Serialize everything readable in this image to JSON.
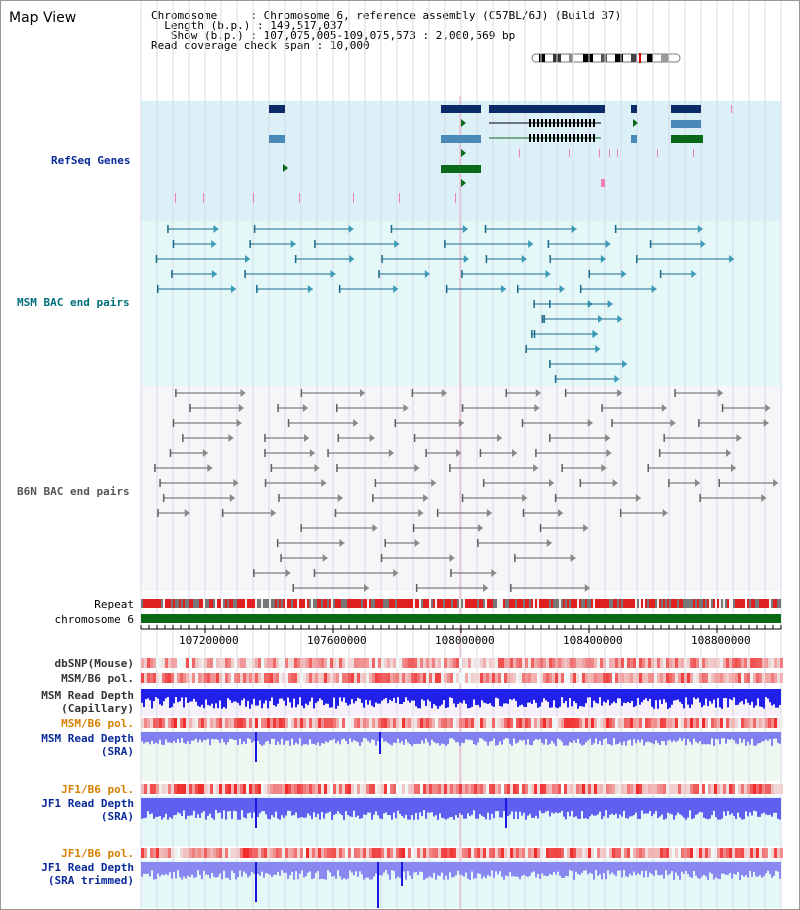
{
  "window": {
    "title": "Map View"
  },
  "info": {
    "chromosome_label": "Chromosome",
    "chromosome_value": "Chromosome 6, reference assembly (C57BL/6J) (Build 37)",
    "length_label": "Length (b.p.)",
    "length_value": "149,517,037",
    "show_label": "Show (b.p.)",
    "show_value": "107,075,005-109,075,573 : 2,000,569 bp",
    "span_label": "Read coverage check span",
    "span_value": "10,000"
  },
  "tracks": {
    "refseq": "RefSeq Genes",
    "msm_bac": "MSM BAC end pairs",
    "b6n_bac": "B6N BAC end pairs",
    "repeat": "Repeat",
    "chromosome": "chromosome 6",
    "dbsnp": "dbSNP(Mouse)",
    "msm_b6_pol_1": "MSM/B6 pol.",
    "msm_depth_cap_1": "MSM Read Depth",
    "msm_depth_cap_2": "(Capillary)",
    "msm_b6_pol_2": "MSM/B6 pol.",
    "msm_depth_sra_1": "MSM Read Depth",
    "msm_depth_sra_2": "(SRA)",
    "jf1_b6_pol_1": "JF1/B6 pol.",
    "jf1_depth_sra_1": "JF1 Read Depth",
    "jf1_depth_sra_2": "(SRA)",
    "jf1_b6_pol_2": "JF1/B6 pol.",
    "jf1_depth_trim_1": "JF1 Read Depth",
    "jf1_depth_trim_2": "(SRA trimmed)"
  },
  "axis": {
    "ticks": [
      "107200000",
      "107600000",
      "108000000",
      "108400000",
      "108800000"
    ]
  },
  "colors": {
    "refseq_bg": "#dcf0f8",
    "msm_bg": "#e4f8f8",
    "b6n_bg": "#f6f6f8",
    "gene_navy": "#0a2a6a",
    "gene_blue": "#4a8ab8",
    "gene_green": "#0a6a1a",
    "msm_line": "#1a6a8a",
    "b6n_line": "#606060",
    "repeat_red": "#e02020",
    "chrom_green": "#0a6a14",
    "depth_blue": "#1818e0",
    "depth_light": "#8080f0"
  }
}
